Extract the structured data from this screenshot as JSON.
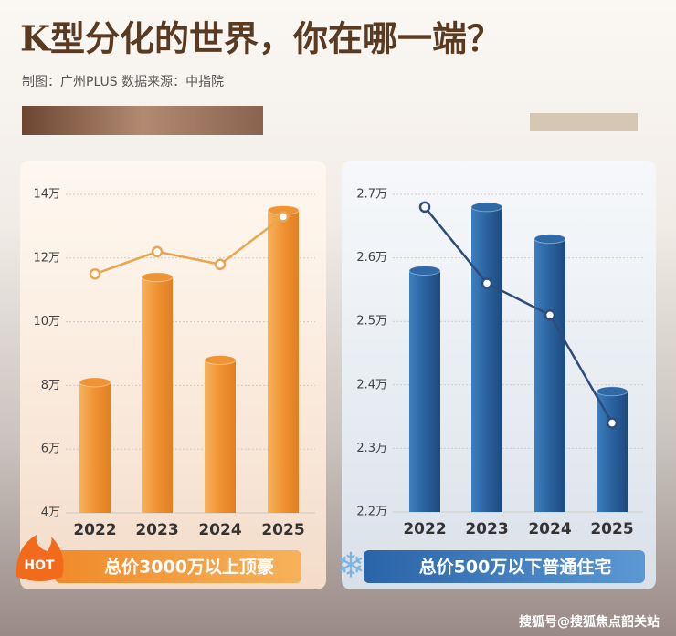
{
  "header": {
    "title": "K型分化的世界，你在哪一端？",
    "subtitle": "制图：广州PLUS   数据来源：中指院"
  },
  "chart_data": [
    {
      "type": "bar",
      "categories": [
        "2022",
        "2023",
        "2024",
        "2025"
      ],
      "series": [
        {
          "kind": "bar",
          "color": "#ee9435",
          "values": [
            8.1,
            11.4,
            8.8,
            13.5
          ]
        },
        {
          "kind": "line",
          "color": "#e8a650",
          "values": [
            11.5,
            12.2,
            11.8,
            13.3
          ]
        }
      ],
      "ylim": [
        4,
        14
      ],
      "yticks": [
        {
          "value": 4,
          "label": "4万"
        },
        {
          "value": 6,
          "label": "6万"
        },
        {
          "value": 8,
          "label": "8万"
        },
        {
          "value": 10,
          "label": "10万"
        },
        {
          "value": 12,
          "label": "12万"
        },
        {
          "value": 14,
          "label": "14万"
        }
      ],
      "grid": true,
      "caption": "总价3000万以上顶豪",
      "badge": "HOT"
    },
    {
      "type": "bar",
      "categories": [
        "2022",
        "2023",
        "2024",
        "2025"
      ],
      "series": [
        {
          "kind": "bar",
          "color": "#2f69a6",
          "values": [
            2.58,
            2.68,
            2.63,
            2.39
          ]
        },
        {
          "kind": "line",
          "color": "#2e4c7a",
          "values": [
            2.68,
            2.56,
            2.51,
            2.34
          ]
        }
      ],
      "ylim": [
        2.2,
        2.7
      ],
      "yticks": [
        {
          "value": 2.2,
          "label": "2.2万"
        },
        {
          "value": 2.3,
          "label": "2.3万"
        },
        {
          "value": 2.4,
          "label": "2.4万"
        },
        {
          "value": 2.5,
          "label": "2.5万"
        },
        {
          "value": 2.6,
          "label": "2.6万"
        },
        {
          "value": 2.7,
          "label": "2.7万"
        }
      ],
      "grid": true,
      "caption": "总价500万以下普通住宅"
    }
  ],
  "watermark": "搜狐号@搜狐焦点韶关站"
}
